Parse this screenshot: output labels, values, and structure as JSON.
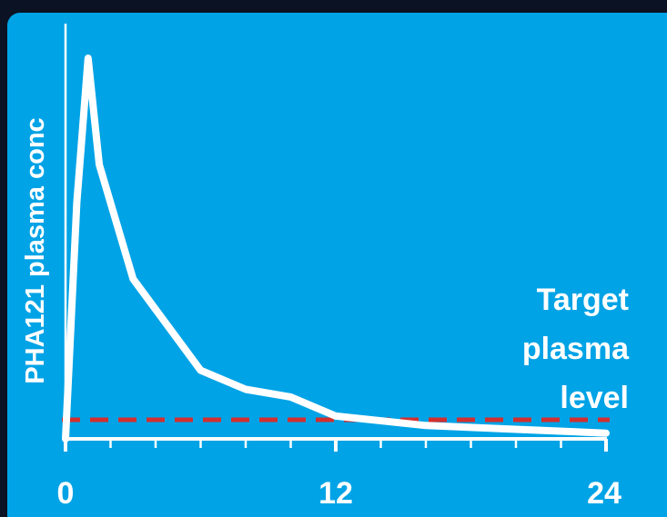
{
  "chart_data": {
    "type": "line",
    "title": "",
    "xlabel": "",
    "ylabel": "PHA121 plasma conc",
    "xlim": [
      0,
      24
    ],
    "ylim": [
      0,
      100
    ],
    "x_ticks": [
      0,
      12,
      24
    ],
    "x_minor_step": 2,
    "grid": false,
    "series": [
      {
        "x": [
          0,
          0.5,
          1,
          1.5,
          3,
          6,
          8,
          10,
          12,
          16,
          20,
          24
        ],
        "y": [
          0,
          62,
          100,
          72,
          42,
          18,
          13,
          11,
          6,
          3.5,
          2.5,
          1.5
        ],
        "color": "#ffffff"
      }
    ],
    "target": {
      "y": 5,
      "color": "#d42e2e",
      "style": "dashed",
      "label_lines": [
        "Target",
        "plasma",
        "level"
      ]
    },
    "colors": {
      "background": "#00a3e6",
      "frame": "#0b1224",
      "axis": "#ffffff"
    }
  }
}
